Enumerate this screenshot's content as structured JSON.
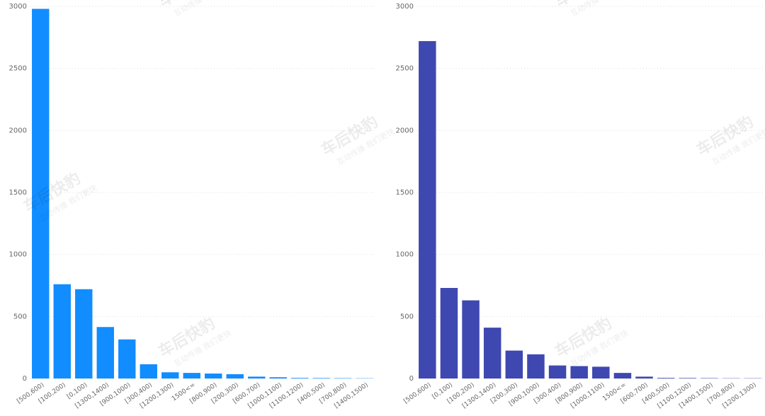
{
  "chart_data": [
    {
      "type": "bar",
      "categories": [
        "[500,600)",
        "[100,200)",
        "[0,100)",
        "[1300,1400)",
        "[900,1000)",
        "[300,400)",
        "[1200,1300)",
        "1500<=",
        "[800,900)",
        "[200,300)",
        "[600,700)",
        "[1000,1100)",
        "[1100,1200)",
        "[400,500)",
        "[700,800)",
        "[1400,1500)"
      ],
      "values": [
        2980,
        760,
        720,
        415,
        315,
        115,
        50,
        45,
        40,
        35,
        15,
        10,
        5,
        4,
        3,
        2
      ],
      "color": "#118dff",
      "ylim": [
        0,
        3000
      ],
      "yticks": [
        0,
        500,
        1000,
        1500,
        2000,
        2500,
        3000
      ],
      "grid": true
    },
    {
      "type": "bar",
      "categories": [
        "[500,600)",
        "[0,100)",
        "[100,200)",
        "[1300,1400)",
        "[200,300)",
        "[900,1000)",
        "[300,400)",
        "[800,900)",
        "[1000,1100)",
        "1500<=",
        "[600,700)",
        "[400,500)",
        "[1100,1200)",
        "[1400,1500)",
        "[700,800)",
        "[1200,1300)"
      ],
      "values": [
        2720,
        730,
        630,
        410,
        225,
        195,
        105,
        100,
        95,
        45,
        15,
        5,
        4,
        3,
        2,
        2
      ],
      "color": "#3f48b0",
      "ylim": [
        0,
        3000
      ],
      "yticks": [
        0,
        500,
        1000,
        1500,
        2000,
        2500,
        3000
      ],
      "grid": true
    }
  ],
  "watermark": {
    "brand": "车后快豹",
    "slogan": "互动传播 我们更快"
  }
}
